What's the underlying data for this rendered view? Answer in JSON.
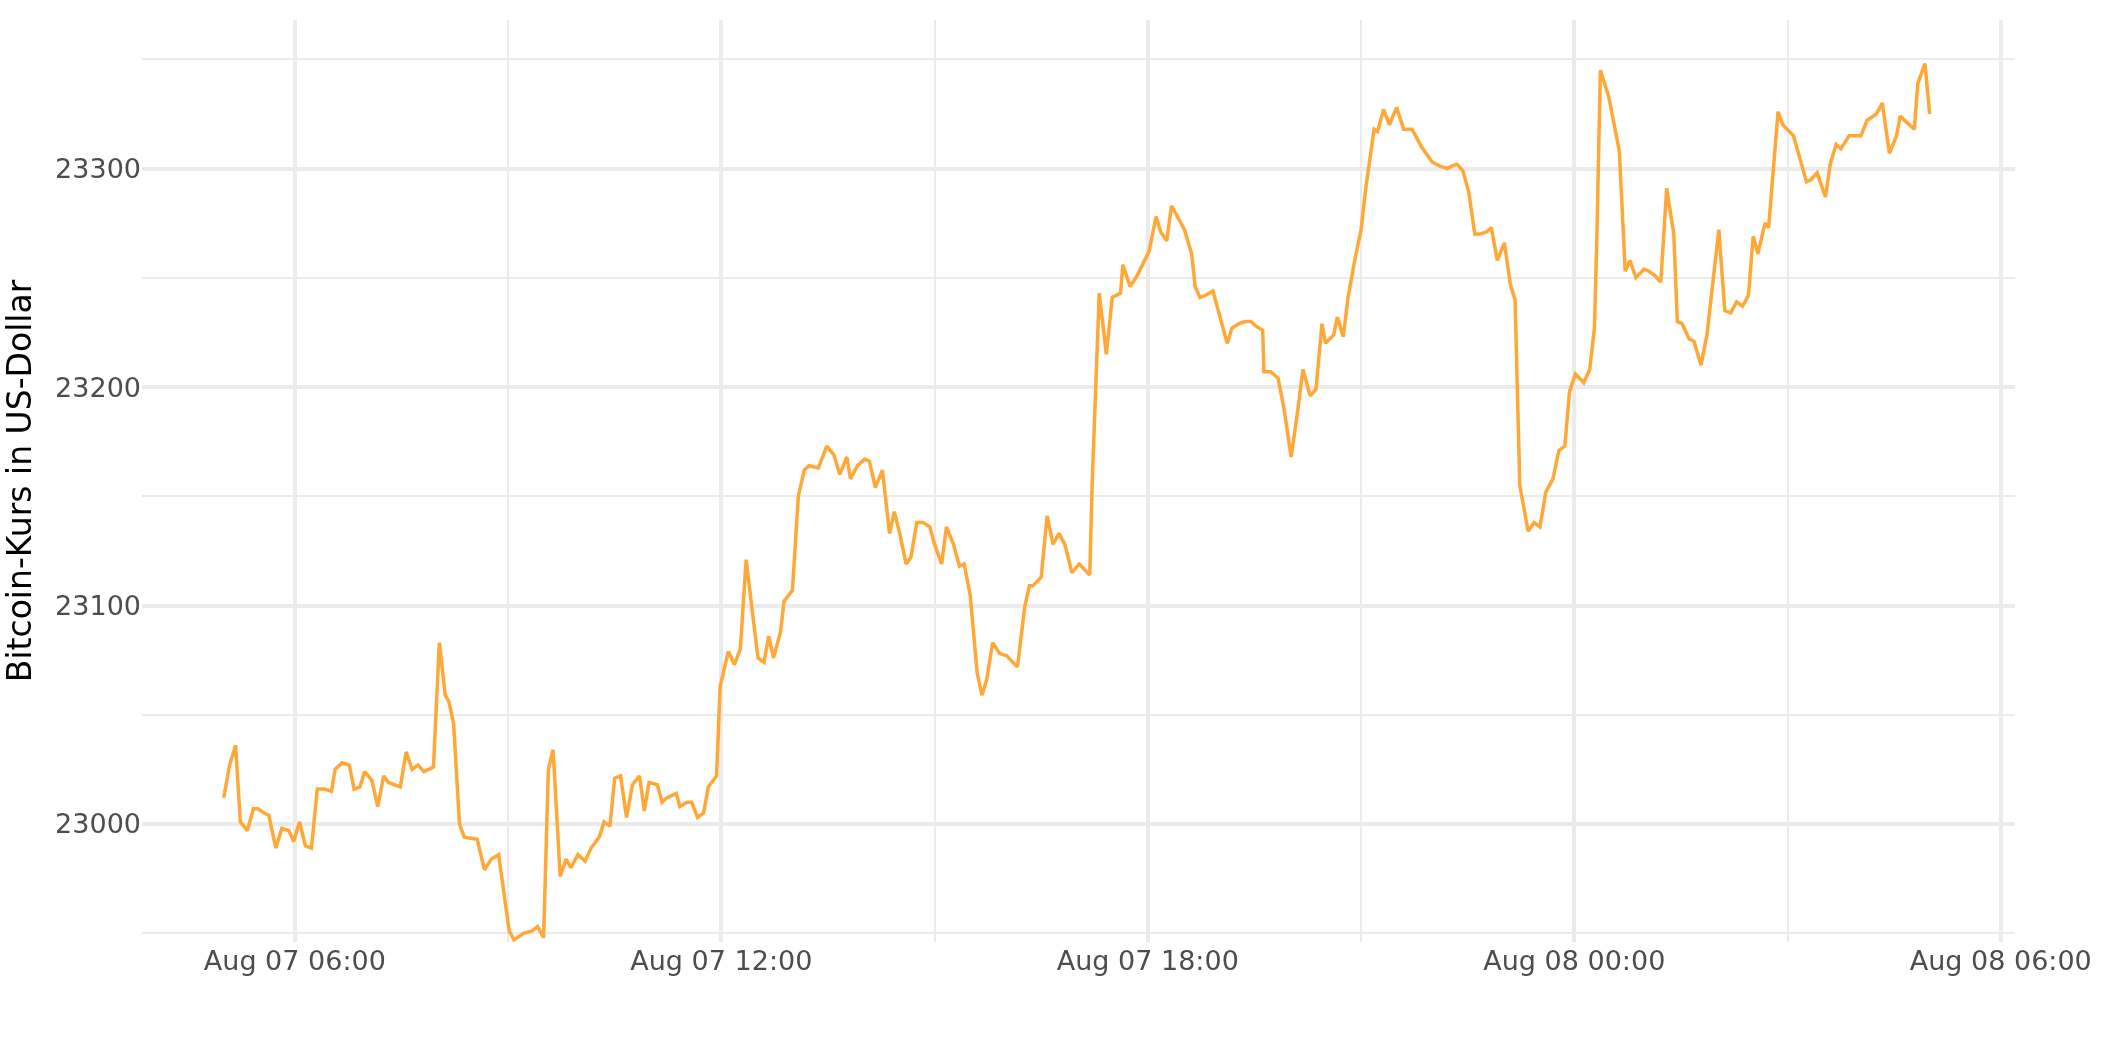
{
  "chart_data": {
    "type": "line",
    "ylabel": "Bitcoin-Kurs in US-Dollar",
    "x": [
      "--08-07T05:00",
      "--08-07T05:05",
      "--08-07T05:10",
      "--08-07T05:14",
      "--08-07T05:20",
      "--08-07T05:25",
      "--08-07T05:29",
      "--08-07T05:34",
      "--08-07T05:38",
      "--08-07T05:44",
      "--08-07T05:49",
      "--08-07T05:55",
      "--08-07T05:59",
      "--08-07T06:04",
      "--08-07T06:09",
      "--08-07T06:14",
      "--08-07T06:19",
      "--08-07T06:25",
      "--08-07T06:31",
      "--08-07T06:34",
      "--08-07T06:40",
      "--08-07T06:46",
      "--08-07T06:50",
      "--08-07T06:55",
      "--08-07T06:59",
      "--08-07T07:05",
      "--08-07T07:10",
      "--08-07T07:15",
      "--08-07T07:19",
      "--08-07T07:29",
      "--08-07T07:34",
      "--08-07T07:39",
      "--08-07T07:44",
      "--08-07T07:49",
      "--08-07T07:57",
      "--08-07T08:02",
      "--08-07T08:07",
      "--08-07T08:10",
      "--08-07T08:14",
      "--08-07T08:19",
      "--08-07T08:23",
      "--08-07T08:34",
      "--08-07T08:40",
      "--08-07T08:46",
      "--08-07T08:52",
      "--08-07T09:01",
      "--08-07T09:05",
      "--08-07T09:13",
      "--08-07T09:20",
      "--08-07T09:25",
      "--08-07T09:30",
      "--08-07T09:34",
      "--08-07T09:38",
      "--08-07T09:44",
      "--08-07T09:49",
      "--08-07T09:53",
      "--08-07T09:59",
      "--08-07T10:05",
      "--08-07T10:10",
      "--08-07T10:17",
      "--08-07T10:21",
      "--08-07T10:26",
      "--08-07T10:30",
      "--08-07T10:35",
      "--08-07T10:40",
      "--08-07T10:45",
      "--08-07T10:51",
      "--08-07T10:55",
      "--08-07T10:59",
      "--08-07T11:06",
      "--08-07T11:10",
      "--08-07T11:14",
      "--08-07T11:22",
      "--08-07T11:25",
      "--08-07T11:31",
      "--08-07T11:35",
      "--08-07T11:40",
      "--08-07T11:45",
      "--08-07T11:49",
      "--08-07T11:56",
      "--08-07T11:59",
      "--08-07T12:06",
      "--08-07T12:11",
      "--08-07T12:16",
      "--08-07T12:21",
      "--08-07T12:26",
      "--08-07T12:31",
      "--08-07T12:36",
      "--08-07T12:40",
      "--08-07T12:44",
      "--08-07T12:50",
      "--08-07T12:53",
      "--08-07T13:00",
      "--08-07T13:05",
      "--08-07T13:10",
      "--08-07T13:14",
      "--08-07T13:22",
      "--08-07T13:29",
      "--08-07T13:35",
      "--08-07T13:40",
      "--08-07T13:46",
      "--08-07T13:49",
      "--08-07T13:55",
      "--08-07T14:01",
      "--08-07T14:05",
      "--08-07T14:10",
      "--08-07T14:16",
      "--08-07T14:22",
      "--08-07T14:26",
      "--08-07T14:31",
      "--08-07T14:36",
      "--08-07T14:40",
      "--08-07T14:45",
      "--08-07T14:50",
      "--08-07T14:56",
      "--08-07T15:00",
      "--08-07T15:06",
      "--08-07T15:10",
      "--08-07T15:16",
      "--08-07T15:21",
      "--08-07T15:25",
      "--08-07T15:30",
      "--08-07T15:36",
      "--08-07T15:40",
      "--08-07T15:44",
      "--08-07T15:49",
      "--08-07T15:55",
      "--08-07T16:01",
      "--08-07T16:06",
      "--08-07T16:10",
      "--08-07T16:16",
      "--08-07T16:20",
      "--08-07T16:23",
      "--08-07T16:30",
      "--08-07T16:35",
      "--08-07T16:40",
      "--08-07T16:45",
      "--08-07T16:50",
      "--08-07T16:56",
      "--08-07T17:02",
      "--08-07T17:11",
      "--08-07T17:13",
      "--08-07T17:19",
      "--08-07T17:25",
      "--08-07T17:30",
      "--08-07T17:37",
      "--08-07T17:39",
      "--08-07T17:45",
      "--08-07T17:51",
      "--08-07T18:01",
      "--08-07T18:07",
      "--08-07T18:11",
      "--08-07T18:16",
      "--08-07T18:20",
      "--08-07T18:31",
      "--08-07T18:37",
      "--08-07T18:40",
      "--08-07T18:44",
      "--08-07T18:49",
      "--08-07T18:55",
      "--08-07T19:01",
      "--08-07T19:07",
      "--08-07T19:11",
      "--08-07T19:17",
      "--08-07T19:22",
      "--08-07T19:27",
      "--08-07T19:31",
      "--08-07T19:37",
      "--08-07T19:38",
      "--08-07T19:44",
      "--08-07T19:50",
      "--08-07T19:55",
      "--08-07T20:01",
      "--08-07T20:06",
      "--08-07T20:11",
      "--08-07T20:17",
      "--08-07T20:22",
      "--08-07T20:27",
      "--08-07T20:30",
      "--08-07T20:37",
      "--08-07T20:40",
      "--08-07T20:45",
      "--08-07T20:49",
      "--08-07T20:55",
      "--08-07T21:00",
      "--08-07T21:04",
      "--08-07T21:11",
      "--08-07T21:14",
      "--08-07T21:19",
      "--08-07T21:24",
      "--08-07T21:30",
      "--08-07T21:36",
      "--08-07T21:43",
      "--08-07T21:51",
      "--08-07T22:00",
      "--08-07T22:07",
      "--08-07T22:13",
      "--08-07T22:16",
      "--08-07T22:21",
      "--08-07T22:26",
      "--08-07T22:31",
      "--08-07T22:36",
      "--08-07T22:40",
      "--08-07T22:46",
      "--08-07T22:50",
      "--08-07T22:55",
      "--08-07T23:01",
      "--08-07T23:06",
      "--08-07T23:10",
      "--08-07T23:14",
      "--08-07T23:21",
      "--08-07T23:26",
      "--08-07T23:31",
      "--08-07T23:36",
      "--08-07T23:42",
      "--08-07T23:47",
      "--08-07T23:52",
      "--08-07T23:56",
      "--08-08T00:01",
      "--08-08T00:08",
      "--08-08T00:13",
      "--08-08T00:17",
      "--08-08T00:19",
      "--08-08T00:22",
      "--08-08T00:29",
      "--08-08T00:33",
      "--08-08T00:38",
      "--08-08T00:43",
      "--08-08T00:47",
      "--08-08T00:52",
      "--08-08T00:59",
      "--08-08T01:03",
      "--08-08T01:08",
      "--08-08T01:13",
      "--08-08T01:18",
      "--08-08T01:24",
      "--08-08T01:27",
      "--08-08T01:31",
      "--08-08T01:37",
      "--08-08T01:41",
      "--08-08T01:47",
      "--08-08T01:52",
      "--08-08T02:02",
      "--08-08T02:07",
      "--08-08T02:12",
      "--08-08T02:17",
      "--08-08T02:22",
      "--08-08T02:27",
      "--08-08T02:31",
      "--08-08T02:35",
      "--08-08T02:41",
      "--08-08T02:44",
      "--08-08T02:52",
      "--08-08T02:56",
      "--08-08T03:05",
      "--08-08T03:16",
      "--08-08T03:20",
      "--08-08T03:25",
      "--08-08T03:32",
      "--08-08T03:36",
      "--08-08T03:41",
      "--08-08T03:45",
      "--08-08T03:52",
      "--08-08T04:02",
      "--08-08T04:07",
      "--08-08T04:15",
      "--08-08T04:20",
      "--08-08T04:26",
      "--08-08T04:32",
      "--08-08T04:35",
      "--08-08T04:47",
      "--08-08T04:50",
      "--08-08T04:56",
      "--08-08T05:00"
    ],
    "series": [
      {
        "color": "#ffa737",
        "values": [
          23012,
          23027,
          23036,
          23001,
          22997,
          23007,
          23007,
          23005,
          23004,
          22989,
          22998,
          22997,
          22992,
          23001,
          22990,
          22989,
          23016,
          23016,
          23015,
          23025,
          23028,
          23027,
          23016,
          23017,
          23024,
          23020,
          23008,
          23022,
          23019,
          23017,
          23033,
          23025,
          23027,
          23024,
          23026,
          23083,
          23059,
          23056,
          23046,
          23000,
          22994,
          22993,
          22979,
          22984,
          22986,
          22951,
          22947,
          22950,
          22951,
          22953,
          22948,
          23025,
          23034,
          22976,
          22984,
          22980,
          22986,
          22983,
          22989,
          22994,
          23001,
          22999,
          23021,
          23022,
          23003,
          23018,
          23022,
          23006,
          23019,
          23018,
          23010,
          23012,
          23014,
          23008,
          23010,
          23010,
          23003,
          23005,
          23017,
          23022,
          23063,
          23079,
          23073,
          23080,
          23121,
          23098,
          23076,
          23074,
          23086,
          23076,
          23088,
          23102,
          23107,
          23150,
          23162,
          23164,
          23163,
          23173,
          23169,
          23160,
          23168,
          23158,
          23164,
          23167,
          23166,
          23154,
          23162,
          23133,
          23143,
          23132,
          23119,
          23122,
          23138,
          23138,
          23136,
          23128,
          23119,
          23136,
          23128,
          23118,
          23119,
          23105,
          23069,
          23059,
          23066,
          23083,
          23078,
          23077,
          23074,
          23072,
          23099,
          23109,
          23109,
          23113,
          23141,
          23128,
          23133,
          23128,
          23115,
          23119,
          23114,
          23155,
          23243,
          23215,
          23241,
          23243,
          23256,
          23246,
          23251,
          23262,
          23278,
          23271,
          23267,
          23283,
          23272,
          23261,
          23246,
          23241,
          23242,
          23244,
          23232,
          23220,
          23227,
          23229,
          23230,
          23230,
          23228,
          23226,
          23207,
          23207,
          23204,
          23190,
          23168,
          23187,
          23208,
          23196,
          23199,
          23229,
          23220,
          23224,
          23232,
          23223,
          23241,
          23259,
          23272,
          23291,
          23318,
          23317,
          23327,
          23320,
          23328,
          23318,
          23318,
          23310,
          23303,
          23301,
          23300,
          23301,
          23302,
          23299,
          23289,
          23270,
          23270,
          23271,
          23273,
          23258,
          23266,
          23247,
          23240,
          23155,
          23134,
          23138,
          23136,
          23152,
          23158,
          23171,
          23173,
          23198,
          23206,
          23202,
          23208,
          23227,
          23267,
          23345,
          23333,
          23322,
          23308,
          23253,
          23258,
          23250,
          23254,
          23253,
          23251,
          23248,
          23291,
          23270,
          23230,
          23229,
          23222,
          23221,
          23210,
          23224,
          23272,
          23235,
          23234,
          23239,
          23237,
          23242,
          23269,
          23261,
          23275,
          23273,
          23326,
          23320,
          23315,
          23294,
          23295,
          23298,
          23287,
          23302,
          23311,
          23309,
          23315,
          23315,
          23322,
          23325,
          23330,
          23307,
          23315,
          23324,
          23318,
          23339,
          23348,
          23325
        ]
      }
    ],
    "xlim": [
      "--08-07T03:51",
      "--08-08T06:12"
    ],
    "xticks": [
      {
        "value": "--08-07T06:00",
        "label": "Aug 07 06:00"
      },
      {
        "value": "--08-07T09:00",
        "label": null
      },
      {
        "value": "--08-07T12:00",
        "label": "Aug 07 12:00"
      },
      {
        "value": "--08-07T15:00",
        "label": null
      },
      {
        "value": "--08-07T18:00",
        "label": "Aug 07 18:00"
      },
      {
        "value": "--08-07T21:00",
        "label": null
      },
      {
        "value": "--08-08T00:00",
        "label": "Aug 08 00:00"
      },
      {
        "value": "--08-08T03:00",
        "label": null
      },
      {
        "value": "--08-08T06:00",
        "label": "Aug 08 06:00"
      }
    ],
    "ylim": [
      22946,
      23368
    ],
    "yticks": [
      {
        "value": 22950,
        "label": null
      },
      23000,
      {
        "value": 23050,
        "label": null
      },
      23100,
      {
        "value": 23150,
        "label": null
      },
      23200,
      {
        "value": 23250,
        "label": null
      },
      23300,
      {
        "value": 23350,
        "label": null
      }
    ],
    "grid": true,
    "marker": "none",
    "line_style": "solid"
  }
}
